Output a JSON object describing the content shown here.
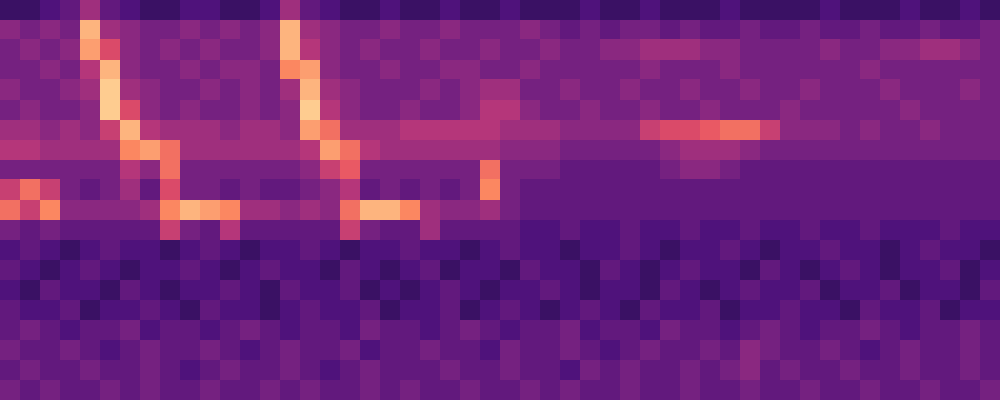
{
  "chart_data": {
    "type": "heatmap",
    "color": "magma",
    "tick_labels": false,
    "x": [
      0,
      1,
      2,
      3,
      4,
      5,
      6,
      7,
      8,
      9,
      10,
      11,
      12,
      13,
      14,
      15,
      16,
      17,
      18,
      19,
      20,
      21,
      22,
      23,
      24,
      25,
      26,
      27,
      28,
      29,
      30,
      31,
      32,
      33,
      34,
      35,
      36,
      37,
      38,
      39,
      40,
      41,
      42,
      43,
      44,
      45,
      46,
      47,
      48,
      49
    ],
    "y": [
      19,
      18,
      17,
      16,
      15,
      14,
      13,
      12,
      11,
      10,
      9,
      8,
      7,
      6,
      5,
      4,
      3,
      2,
      1,
      0
    ],
    "xlim": [
      -0.5,
      49.5
    ],
    "ylim": [
      -0.5,
      19.5
    ],
    "color_range": [
      0,
      1
    ],
    "cells": [
      [
        0.2,
        0.2,
        0.25,
        0.3,
        0.45,
        0.3,
        0.25,
        0.2,
        0.2,
        0.25,
        0.25,
        0.2,
        0.2,
        0.25,
        0.45,
        0.3,
        0.25,
        0.2,
        0.2,
        0.25,
        0.2,
        0.2,
        0.25,
        0.2,
        0.2,
        0.25,
        0.2,
        0.2,
        0.2,
        0.25,
        0.2,
        0.2,
        0.25,
        0.2,
        0.2,
        0.2,
        0.25,
        0.2,
        0.2,
        0.2,
        0.2,
        0.25,
        0.2,
        0.2,
        0.2,
        0.25,
        0.2,
        0.2,
        0.25,
        0.2
      ],
      [
        0.4,
        0.35,
        0.4,
        0.35,
        0.85,
        0.45,
        0.4,
        0.35,
        0.35,
        0.4,
        0.35,
        0.4,
        0.35,
        0.4,
        0.85,
        0.45,
        0.4,
        0.35,
        0.35,
        0.4,
        0.35,
        0.35,
        0.4,
        0.35,
        0.35,
        0.35,
        0.4,
        0.35,
        0.3,
        0.35,
        0.3,
        0.35,
        0.35,
        0.3,
        0.35,
        0.3,
        0.3,
        0.35,
        0.3,
        0.3,
        0.35,
        0.3,
        0.3,
        0.35,
        0.3,
        0.3,
        0.35,
        0.3,
        0.3,
        0.35
      ],
      [
        0.35,
        0.4,
        0.35,
        0.4,
        0.8,
        0.6,
        0.4,
        0.35,
        0.4,
        0.35,
        0.4,
        0.35,
        0.35,
        0.4,
        0.85,
        0.5,
        0.4,
        0.35,
        0.4,
        0.35,
        0.35,
        0.4,
        0.35,
        0.35,
        0.4,
        0.35,
        0.35,
        0.4,
        0.35,
        0.35,
        0.4,
        0.4,
        0.45,
        0.45,
        0.45,
        0.4,
        0.4,
        0.35,
        0.35,
        0.35,
        0.35,
        0.4,
        0.35,
        0.35,
        0.4,
        0.4,
        0.45,
        0.45,
        0.4,
        0.35
      ],
      [
        0.35,
        0.35,
        0.4,
        0.35,
        0.5,
        0.85,
        0.4,
        0.35,
        0.35,
        0.4,
        0.35,
        0.4,
        0.4,
        0.35,
        0.75,
        0.8,
        0.4,
        0.35,
        0.35,
        0.4,
        0.35,
        0.35,
        0.4,
        0.4,
        0.35,
        0.35,
        0.4,
        0.35,
        0.35,
        0.35,
        0.35,
        0.35,
        0.4,
        0.35,
        0.35,
        0.35,
        0.4,
        0.35,
        0.35,
        0.35,
        0.35,
        0.35,
        0.35,
        0.4,
        0.35,
        0.35,
        0.35,
        0.35,
        0.35,
        0.35
      ],
      [
        0.4,
        0.35,
        0.35,
        0.4,
        0.45,
        0.9,
        0.45,
        0.4,
        0.35,
        0.35,
        0.4,
        0.35,
        0.4,
        0.35,
        0.45,
        0.85,
        0.45,
        0.4,
        0.35,
        0.35,
        0.35,
        0.4,
        0.35,
        0.4,
        0.45,
        0.45,
        0.35,
        0.35,
        0.4,
        0.35,
        0.35,
        0.4,
        0.35,
        0.35,
        0.4,
        0.35,
        0.35,
        0.4,
        0.35,
        0.35,
        0.4,
        0.35,
        0.35,
        0.35,
        0.4,
        0.35,
        0.35,
        0.35,
        0.4,
        0.35
      ],
      [
        0.35,
        0.4,
        0.35,
        0.35,
        0.4,
        0.9,
        0.6,
        0.4,
        0.35,
        0.4,
        0.35,
        0.35,
        0.4,
        0.35,
        0.4,
        0.9,
        0.5,
        0.4,
        0.35,
        0.35,
        0.4,
        0.35,
        0.35,
        0.4,
        0.5,
        0.5,
        0.4,
        0.35,
        0.35,
        0.4,
        0.35,
        0.35,
        0.4,
        0.35,
        0.35,
        0.4,
        0.35,
        0.35,
        0.35,
        0.4,
        0.35,
        0.35,
        0.35,
        0.35,
        0.35,
        0.4,
        0.35,
        0.35,
        0.35,
        0.35
      ],
      [
        0.45,
        0.45,
        0.4,
        0.45,
        0.4,
        0.55,
        0.85,
        0.5,
        0.45,
        0.45,
        0.45,
        0.4,
        0.45,
        0.45,
        0.4,
        0.8,
        0.7,
        0.45,
        0.45,
        0.45,
        0.5,
        0.5,
        0.5,
        0.5,
        0.5,
        0.45,
        0.45,
        0.45,
        0.4,
        0.4,
        0.4,
        0.4,
        0.55,
        0.6,
        0.6,
        0.65,
        0.7,
        0.7,
        0.55,
        0.4,
        0.4,
        0.4,
        0.35,
        0.4,
        0.35,
        0.35,
        0.4,
        0.35,
        0.35,
        0.35
      ],
      [
        0.5,
        0.5,
        0.45,
        0.45,
        0.45,
        0.45,
        0.75,
        0.8,
        0.7,
        0.45,
        0.45,
        0.45,
        0.45,
        0.45,
        0.45,
        0.5,
        0.8,
        0.7,
        0.5,
        0.45,
        0.45,
        0.45,
        0.45,
        0.45,
        0.45,
        0.4,
        0.4,
        0.4,
        0.35,
        0.35,
        0.35,
        0.35,
        0.35,
        0.4,
        0.45,
        0.45,
        0.45,
        0.4,
        0.35,
        0.35,
        0.35,
        0.35,
        0.35,
        0.35,
        0.35,
        0.35,
        0.35,
        0.35,
        0.35,
        0.35
      ],
      [
        0.35,
        0.35,
        0.35,
        0.35,
        0.35,
        0.35,
        0.5,
        0.4,
        0.7,
        0.35,
        0.35,
        0.35,
        0.35,
        0.35,
        0.35,
        0.4,
        0.55,
        0.65,
        0.35,
        0.35,
        0.35,
        0.35,
        0.35,
        0.35,
        0.7,
        0.35,
        0.35,
        0.35,
        0.3,
        0.3,
        0.3,
        0.3,
        0.3,
        0.35,
        0.4,
        0.4,
        0.35,
        0.3,
        0.3,
        0.3,
        0.3,
        0.3,
        0.3,
        0.3,
        0.3,
        0.3,
        0.3,
        0.3,
        0.3,
        0.3
      ],
      [
        0.55,
        0.7,
        0.55,
        0.35,
        0.3,
        0.35,
        0.45,
        0.3,
        0.6,
        0.35,
        0.35,
        0.3,
        0.35,
        0.3,
        0.3,
        0.35,
        0.4,
        0.5,
        0.3,
        0.35,
        0.3,
        0.35,
        0.3,
        0.35,
        0.75,
        0.35,
        0.3,
        0.3,
        0.3,
        0.3,
        0.3,
        0.3,
        0.3,
        0.3,
        0.3,
        0.3,
        0.3,
        0.3,
        0.3,
        0.3,
        0.3,
        0.3,
        0.3,
        0.3,
        0.3,
        0.3,
        0.3,
        0.3,
        0.3,
        0.3
      ],
      [
        0.7,
        0.55,
        0.75,
        0.4,
        0.4,
        0.4,
        0.4,
        0.45,
        0.75,
        0.85,
        0.8,
        0.75,
        0.45,
        0.45,
        0.4,
        0.45,
        0.4,
        0.7,
        0.85,
        0.85,
        0.75,
        0.45,
        0.4,
        0.4,
        0.45,
        0.35,
        0.3,
        0.3,
        0.3,
        0.3,
        0.3,
        0.3,
        0.3,
        0.3,
        0.3,
        0.3,
        0.3,
        0.3,
        0.3,
        0.3,
        0.3,
        0.3,
        0.3,
        0.3,
        0.3,
        0.3,
        0.3,
        0.3,
        0.3,
        0.3
      ],
      [
        0.35,
        0.3,
        0.35,
        0.3,
        0.3,
        0.3,
        0.3,
        0.3,
        0.55,
        0.35,
        0.3,
        0.5,
        0.3,
        0.3,
        0.3,
        0.3,
        0.3,
        0.55,
        0.35,
        0.3,
        0.3,
        0.45,
        0.3,
        0.3,
        0.3,
        0.3,
        0.25,
        0.25,
        0.3,
        0.25,
        0.25,
        0.3,
        0.25,
        0.25,
        0.3,
        0.25,
        0.25,
        0.3,
        0.25,
        0.25,
        0.3,
        0.25,
        0.25,
        0.3,
        0.25,
        0.25,
        0.25,
        0.3,
        0.25,
        0.25
      ],
      [
        0.25,
        0.3,
        0.25,
        0.2,
        0.25,
        0.3,
        0.25,
        0.25,
        0.2,
        0.25,
        0.3,
        0.25,
        0.2,
        0.25,
        0.25,
        0.3,
        0.25,
        0.2,
        0.25,
        0.25,
        0.3,
        0.25,
        0.25,
        0.2,
        0.25,
        0.3,
        0.25,
        0.25,
        0.2,
        0.25,
        0.25,
        0.3,
        0.25,
        0.2,
        0.25,
        0.25,
        0.3,
        0.25,
        0.2,
        0.25,
        0.25,
        0.3,
        0.25,
        0.25,
        0.2,
        0.25,
        0.3,
        0.25,
        0.25,
        0.2
      ],
      [
        0.3,
        0.25,
        0.2,
        0.25,
        0.3,
        0.25,
        0.2,
        0.25,
        0.25,
        0.3,
        0.25,
        0.2,
        0.25,
        0.3,
        0.25,
        0.25,
        0.2,
        0.3,
        0.25,
        0.2,
        0.25,
        0.3,
        0.2,
        0.25,
        0.25,
        0.2,
        0.3,
        0.25,
        0.25,
        0.2,
        0.3,
        0.25,
        0.2,
        0.25,
        0.3,
        0.25,
        0.25,
        0.2,
        0.3,
        0.25,
        0.2,
        0.25,
        0.3,
        0.25,
        0.2,
        0.25,
        0.25,
        0.3,
        0.2,
        0.25
      ],
      [
        0.25,
        0.2,
        0.3,
        0.25,
        0.25,
        0.2,
        0.3,
        0.25,
        0.2,
        0.25,
        0.25,
        0.3,
        0.25,
        0.2,
        0.3,
        0.25,
        0.25,
        0.3,
        0.2,
        0.25,
        0.2,
        0.25,
        0.3,
        0.25,
        0.2,
        0.25,
        0.25,
        0.3,
        0.25,
        0.2,
        0.25,
        0.25,
        0.2,
        0.3,
        0.25,
        0.2,
        0.25,
        0.3,
        0.25,
        0.25,
        0.3,
        0.2,
        0.25,
        0.25,
        0.3,
        0.2,
        0.25,
        0.25,
        0.2,
        0.3
      ],
      [
        0.3,
        0.25,
        0.25,
        0.3,
        0.2,
        0.25,
        0.25,
        0.3,
        0.25,
        0.2,
        0.3,
        0.25,
        0.25,
        0.2,
        0.25,
        0.3,
        0.25,
        0.25,
        0.3,
        0.2,
        0.25,
        0.25,
        0.3,
        0.2,
        0.25,
        0.3,
        0.25,
        0.2,
        0.25,
        0.3,
        0.25,
        0.2,
        0.3,
        0.25,
        0.25,
        0.3,
        0.2,
        0.25,
        0.25,
        0.3,
        0.25,
        0.25,
        0.2,
        0.3,
        0.25,
        0.25,
        0.3,
        0.2,
        0.25,
        0.25
      ],
      [
        0.3,
        0.35,
        0.3,
        0.25,
        0.3,
        0.3,
        0.35,
        0.25,
        0.3,
        0.3,
        0.25,
        0.3,
        0.35,
        0.3,
        0.25,
        0.3,
        0.3,
        0.25,
        0.35,
        0.3,
        0.3,
        0.25,
        0.3,
        0.35,
        0.3,
        0.25,
        0.3,
        0.3,
        0.35,
        0.25,
        0.3,
        0.3,
        0.25,
        0.35,
        0.3,
        0.3,
        0.25,
        0.3,
        0.35,
        0.3,
        0.25,
        0.3,
        0.3,
        0.35,
        0.3,
        0.25,
        0.3,
        0.3,
        0.35,
        0.3
      ],
      [
        0.35,
        0.3,
        0.3,
        0.35,
        0.3,
        0.25,
        0.3,
        0.35,
        0.3,
        0.3,
        0.35,
        0.3,
        0.25,
        0.3,
        0.35,
        0.3,
        0.3,
        0.35,
        0.25,
        0.3,
        0.3,
        0.35,
        0.3,
        0.3,
        0.25,
        0.35,
        0.3,
        0.3,
        0.35,
        0.3,
        0.25,
        0.3,
        0.35,
        0.3,
        0.3,
        0.35,
        0.3,
        0.4,
        0.35,
        0.3,
        0.3,
        0.35,
        0.3,
        0.25,
        0.3,
        0.35,
        0.3,
        0.3,
        0.35,
        0.3
      ],
      [
        0.3,
        0.35,
        0.3,
        0.3,
        0.35,
        0.3,
        0.3,
        0.35,
        0.3,
        0.25,
        0.3,
        0.35,
        0.3,
        0.3,
        0.35,
        0.3,
        0.25,
        0.3,
        0.35,
        0.3,
        0.3,
        0.3,
        0.35,
        0.3,
        0.3,
        0.35,
        0.3,
        0.3,
        0.25,
        0.35,
        0.3,
        0.35,
        0.3,
        0.3,
        0.35,
        0.3,
        0.35,
        0.4,
        0.3,
        0.35,
        0.3,
        0.3,
        0.35,
        0.3,
        0.3,
        0.35,
        0.3,
        0.3,
        0.35,
        0.3
      ],
      [
        0.35,
        0.3,
        0.35,
        0.3,
        0.3,
        0.35,
        0.3,
        0.35,
        0.3,
        0.3,
        0.35,
        0.3,
        0.3,
        0.35,
        0.3,
        0.35,
        0.3,
        0.3,
        0.35,
        0.3,
        0.35,
        0.3,
        0.3,
        0.35,
        0.3,
        0.3,
        0.35,
        0.3,
        0.35,
        0.3,
        0.3,
        0.35,
        0.3,
        0.3,
        0.35,
        0.3,
        0.3,
        0.35,
        0.3,
        0.3,
        0.35,
        0.3,
        0.3,
        0.35,
        0.3,
        0.3,
        0.35,
        0.3,
        0.3,
        0.35
      ]
    ]
  }
}
